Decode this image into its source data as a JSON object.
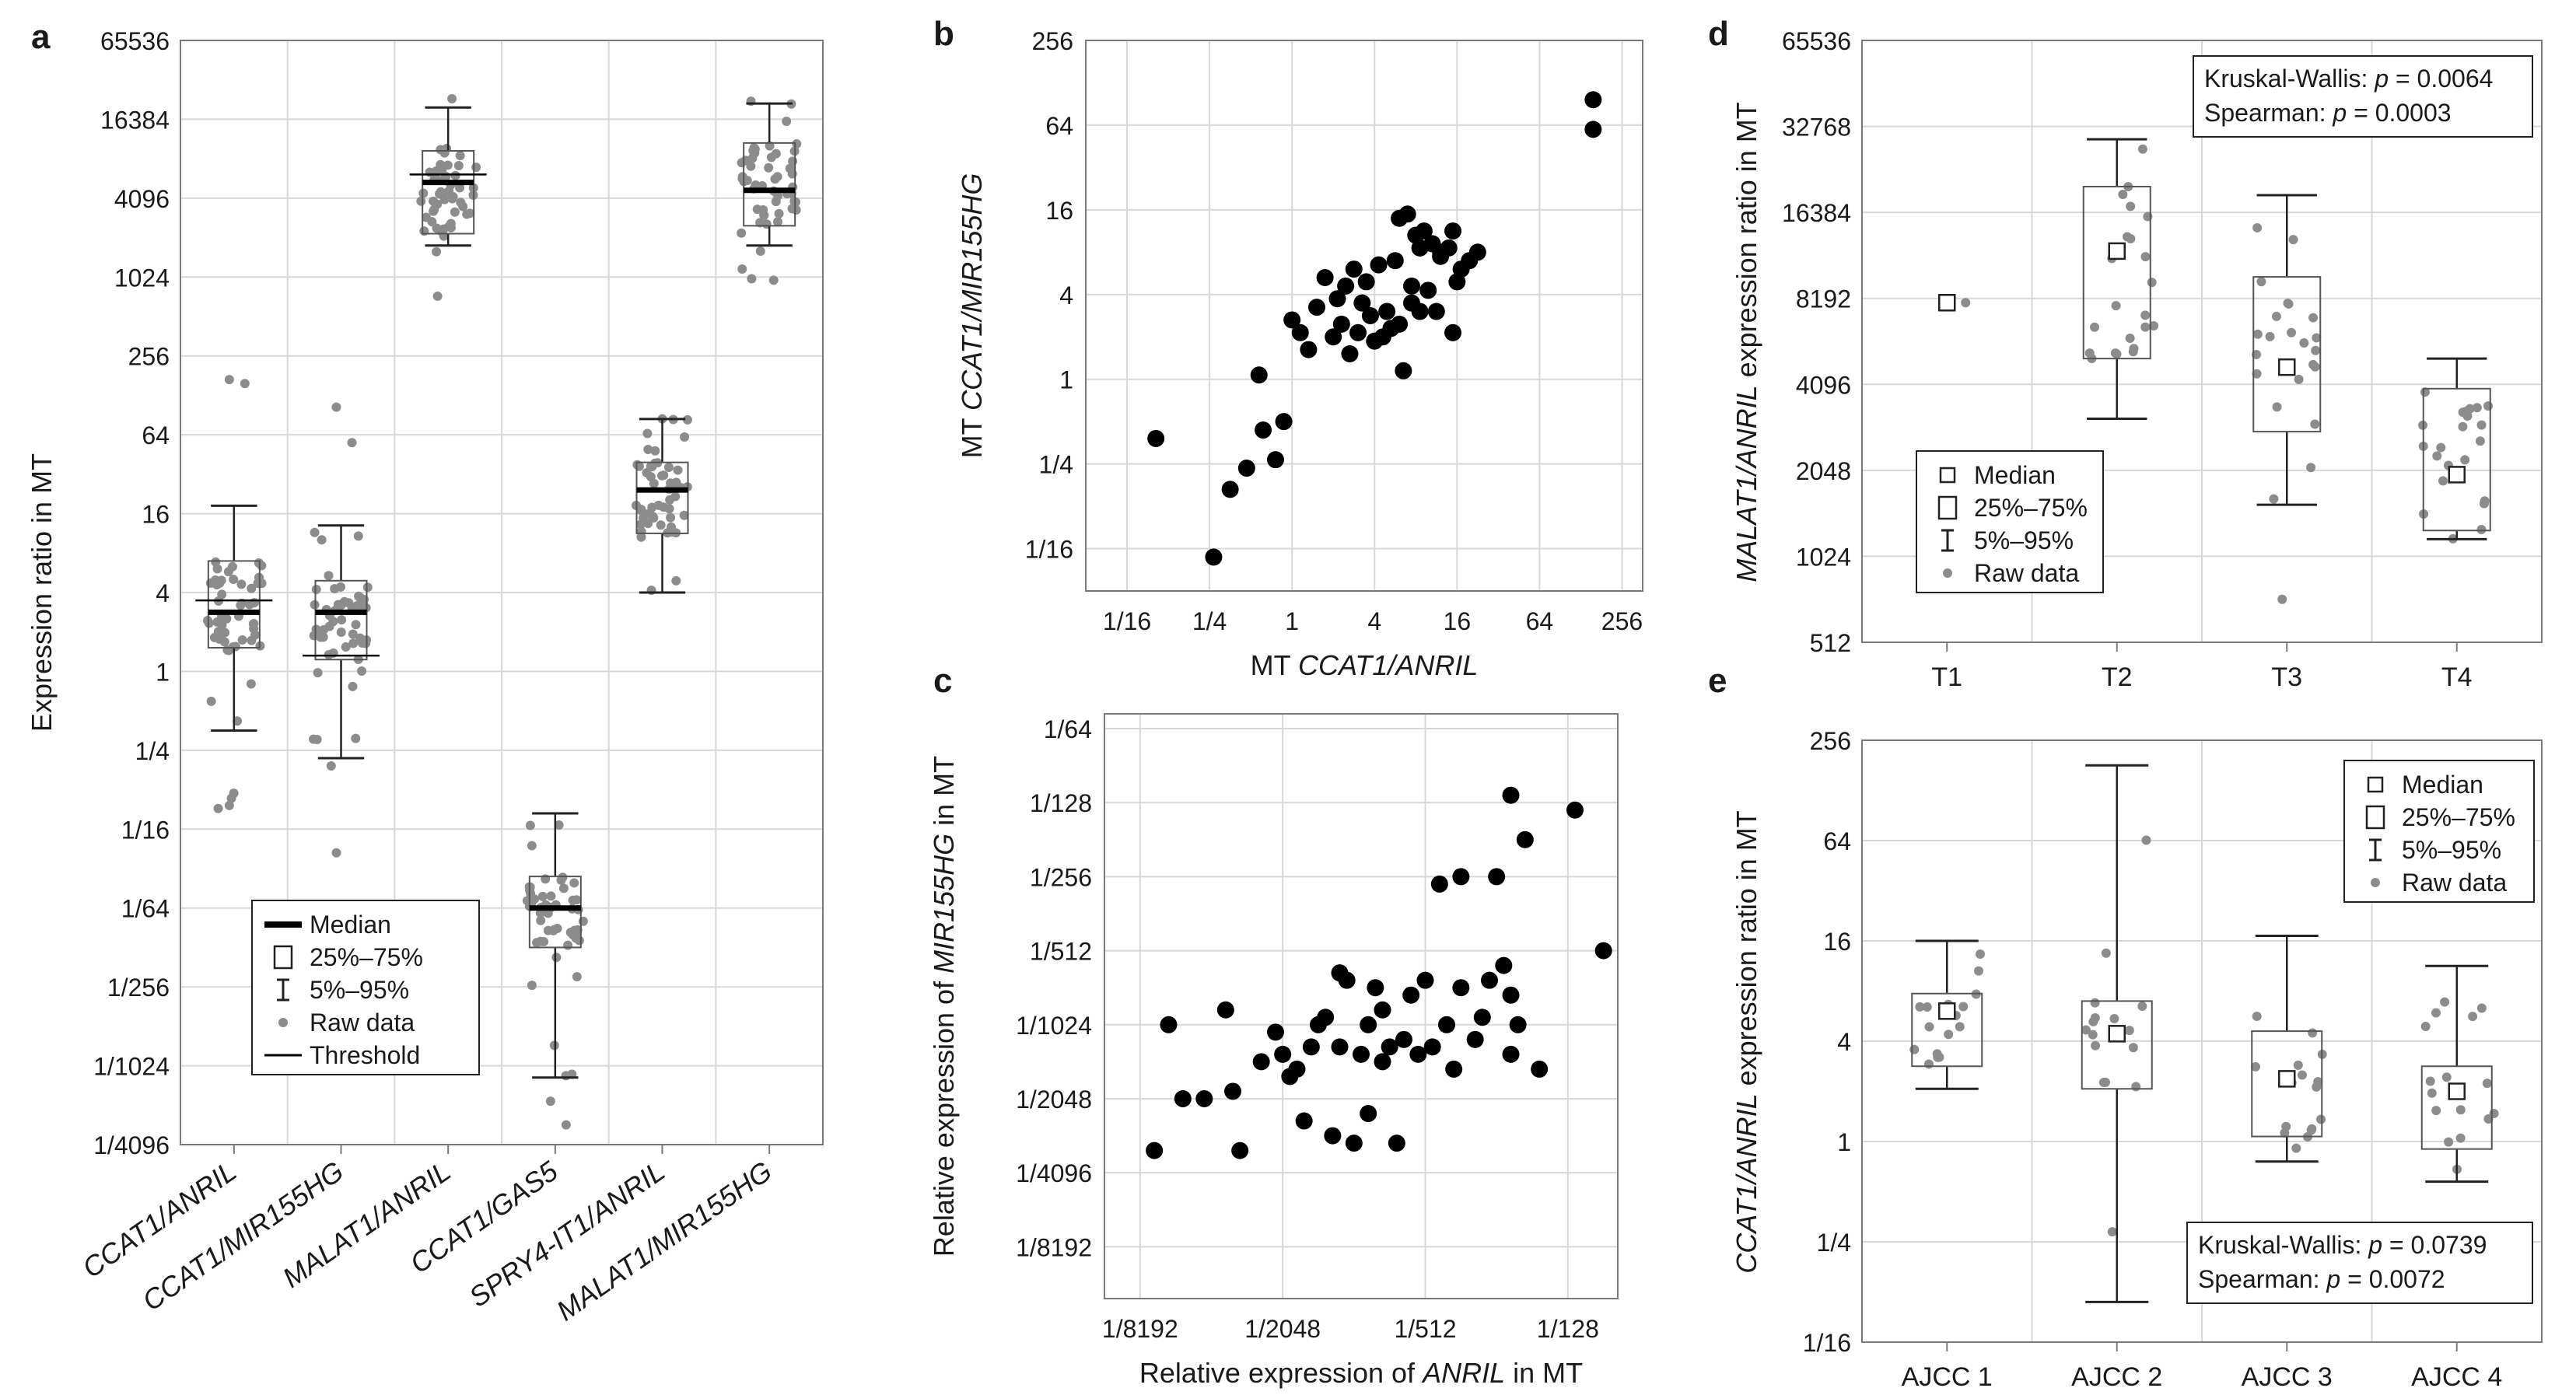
{
  "chart_data": [
    {
      "panel": "a",
      "type": "box",
      "ylabel": "Expression ratio in MT",
      "yscale": "log2",
      "ylim_exp": [
        -12,
        16
      ],
      "tick_exps": [
        -12,
        -10,
        -8,
        -6,
        -4,
        -2,
        0,
        2,
        4,
        6,
        8,
        10,
        12,
        14,
        16
      ],
      "ticks": [
        "1/4096",
        "1/1024",
        "1/256",
        "1/64",
        "1/16",
        "1/4",
        "1",
        "4",
        "16",
        "64",
        "256",
        "1024",
        "4096",
        "16384",
        "65536"
      ],
      "categories": [
        "CCAT1/ANRIL",
        "CCAT1/MIR155HG",
        "MALAT1/ANRIL",
        "CCAT1/GAS5",
        "SPRY4-IT1/ANRIL",
        "MALAT1/MIR155HG"
      ],
      "boxes": [
        {
          "q1": 0.6,
          "median": 1.5,
          "q3": 2.8,
          "w_lo": -1.5,
          "w_hi": 4.2,
          "threshold": 1.8,
          "pts_lo": -3.5,
          "pts_hi": 4.2,
          "outliers": [
            7.4,
            7.3,
            -3.4
          ]
        },
        {
          "q1": 0.3,
          "median": 1.5,
          "q3": 2.3,
          "w_lo": -2.2,
          "w_hi": 3.7,
          "threshold": 0.4,
          "pts_lo": -2.6,
          "pts_hi": 3.6,
          "outliers": [
            6.7,
            5.8,
            -4.6
          ]
        },
        {
          "q1": 11.1,
          "median": 12.4,
          "q3": 13.2,
          "w_lo": 10.8,
          "w_hi": 14.3,
          "threshold": 12.6,
          "pts_lo": 9.4,
          "pts_hi": 14.8,
          "outliers": []
        },
        {
          "q1": -7.0,
          "median": -6.0,
          "q3": -5.2,
          "w_lo": -10.3,
          "w_hi": -3.6,
          "threshold": null,
          "pts_lo": -10.5,
          "pts_hi": -3.3,
          "outliers": [
            -10.9,
            -11.5
          ]
        },
        {
          "q1": 3.5,
          "median": 4.6,
          "q3": 5.3,
          "w_lo": 2.0,
          "w_hi": 6.4,
          "threshold": null,
          "pts_lo": 1.6,
          "pts_hi": 6.5,
          "outliers": []
        },
        {
          "q1": 11.3,
          "median": 12.2,
          "q3": 13.4,
          "w_lo": 10.8,
          "w_hi": 14.4,
          "threshold": null,
          "pts_lo": 9.6,
          "pts_hi": 14.8,
          "outliers": []
        }
      ],
      "legend": [
        {
          "symbol": "median",
          "label": "Median"
        },
        {
          "symbol": "box",
          "label": "25%–75%"
        },
        {
          "symbol": "whisker",
          "label": "5%–95%"
        },
        {
          "symbol": "dot",
          "label": "Raw data"
        },
        {
          "symbol": "line",
          "label": "Threshold"
        }
      ]
    },
    {
      "panel": "b",
      "type": "scatter",
      "xlabel_pre": "MT ",
      "xlabel_it": "CCAT1/ANRIL",
      "ylabel_pre": "MT ",
      "ylabel_it": "CCAT1/MIR155HG",
      "xscale": "log2",
      "yscale": "log2",
      "xlim_exp": [
        -5,
        8.5
      ],
      "ylim_exp": [
        -5,
        8
      ],
      "x_tick_exps": [
        -4,
        -2,
        0,
        2,
        4,
        6,
        8
      ],
      "x_ticks": [
        "1/16",
        "1/4",
        "1",
        "4",
        "16",
        "64",
        "256"
      ],
      "y_tick_exps": [
        -4,
        -2,
        0,
        2,
        4,
        6,
        8
      ],
      "y_ticks": [
        "1/16",
        "1/4",
        "1",
        "4",
        "16",
        "64",
        "256"
      ],
      "points_exp": [
        [
          -3.3,
          -1.4
        ],
        [
          -1.9,
          -4.2
        ],
        [
          -1.5,
          -2.6
        ],
        [
          -1.1,
          -2.1
        ],
        [
          -0.7,
          -1.2
        ],
        [
          -0.4,
          -1.9
        ],
        [
          -0.8,
          0.1
        ],
        [
          -0.2,
          -1.0
        ],
        [
          0.0,
          1.4
        ],
        [
          0.2,
          1.1
        ],
        [
          0.4,
          0.7
        ],
        [
          0.6,
          1.7
        ],
        [
          0.8,
          2.4
        ],
        [
          1.0,
          1.0
        ],
        [
          1.1,
          1.9
        ],
        [
          1.2,
          1.3
        ],
        [
          1.3,
          2.2
        ],
        [
          1.4,
          0.6
        ],
        [
          1.5,
          2.6
        ],
        [
          1.6,
          1.1
        ],
        [
          1.7,
          1.8
        ],
        [
          1.8,
          2.3
        ],
        [
          1.9,
          1.5
        ],
        [
          2.0,
          0.9
        ],
        [
          2.1,
          2.7
        ],
        [
          2.2,
          1.0
        ],
        [
          2.3,
          1.6
        ],
        [
          2.4,
          1.2
        ],
        [
          2.5,
          2.8
        ],
        [
          2.6,
          1.3
        ],
        [
          2.7,
          0.2
        ],
        [
          2.9,
          1.8
        ],
        [
          3.1,
          1.6
        ],
        [
          3.3,
          2.1
        ],
        [
          3.5,
          1.6
        ],
        [
          3.6,
          2.9
        ],
        [
          2.6,
          3.8
        ],
        [
          2.8,
          3.9
        ],
        [
          2.9,
          2.2
        ],
        [
          3.0,
          3.4
        ],
        [
          3.1,
          3.1
        ],
        [
          3.2,
          3.5
        ],
        [
          3.4,
          3.2
        ],
        [
          3.6,
          3.0
        ],
        [
          3.8,
          3.1
        ],
        [
          3.9,
          1.1
        ],
        [
          4.0,
          2.3
        ],
        [
          4.1,
          2.6
        ],
        [
          4.3,
          2.8
        ],
        [
          4.5,
          3.0
        ],
        [
          3.9,
          3.5
        ],
        [
          7.3,
          6.6
        ],
        [
          7.3,
          5.9
        ]
      ]
    },
    {
      "panel": "c",
      "type": "scatter",
      "xlabel_pre": "Relative  expression of ",
      "xlabel_it": "ANRIL",
      "xlabel_post": " in MT",
      "ylabel_pre": "Relative expression of ",
      "ylabel_it": "MIR155HG",
      "ylabel_post": " in MT",
      "xscale": "log2",
      "yscale": "log2",
      "xlim_exp": [
        -13.5,
        -6.3
      ],
      "ylim_exp": [
        -13.7,
        -5.8
      ],
      "x_tick_exps": [
        -13,
        -11,
        -9,
        -7
      ],
      "x_ticks": [
        "1/8192",
        "1/2048",
        "1/512",
        "1/128"
      ],
      "y_tick_exps": [
        -13,
        -12,
        -11,
        -10,
        -9,
        -8,
        -7,
        -6
      ],
      "y_ticks": [
        "1/8192",
        "1/4096",
        "1/2048",
        "1/1024",
        "1/512",
        "1/256",
        "1/128",
        "1/64"
      ],
      "points_exp": [
        [
          -12.8,
          -11.7
        ],
        [
          -12.6,
          -10.0
        ],
        [
          -12.4,
          -11.0
        ],
        [
          -12.1,
          -11.0
        ],
        [
          -11.8,
          -9.8
        ],
        [
          -11.7,
          -10.9
        ],
        [
          -11.6,
          -11.7
        ],
        [
          -11.3,
          -10.5
        ],
        [
          -11.1,
          -10.1
        ],
        [
          -11.0,
          -10.4
        ],
        [
          -10.9,
          -10.7
        ],
        [
          -10.8,
          -10.6
        ],
        [
          -10.7,
          -11.3
        ],
        [
          -10.6,
          -10.3
        ],
        [
          -10.5,
          -10.0
        ],
        [
          -10.4,
          -9.9
        ],
        [
          -10.3,
          -11.5
        ],
        [
          -10.2,
          -10.3
        ],
        [
          -10.2,
          -9.3
        ],
        [
          -10.1,
          -9.4
        ],
        [
          -10.0,
          -11.6
        ],
        [
          -9.9,
          -10.4
        ],
        [
          -9.8,
          -10.0
        ],
        [
          -9.8,
          -11.2
        ],
        [
          -9.7,
          -9.5
        ],
        [
          -9.6,
          -10.5
        ],
        [
          -9.6,
          -9.8
        ],
        [
          -9.5,
          -10.3
        ],
        [
          -9.4,
          -11.6
        ],
        [
          -9.3,
          -10.2
        ],
        [
          -9.2,
          -9.6
        ],
        [
          -9.1,
          -10.4
        ],
        [
          -9.0,
          -9.4
        ],
        [
          -8.9,
          -10.3
        ],
        [
          -8.8,
          -8.1
        ],
        [
          -8.7,
          -10.0
        ],
        [
          -8.6,
          -10.6
        ],
        [
          -8.5,
          -9.5
        ],
        [
          -8.5,
          -8.0
        ],
        [
          -8.3,
          -10.2
        ],
        [
          -8.2,
          -9.9
        ],
        [
          -8.1,
          -9.4
        ],
        [
          -8.0,
          -8.0
        ],
        [
          -7.9,
          -9.2
        ],
        [
          -7.8,
          -9.6
        ],
        [
          -7.8,
          -10.4
        ],
        [
          -7.7,
          -10.0
        ],
        [
          -7.6,
          -7.5
        ],
        [
          -6.9,
          -7.1
        ],
        [
          -6.5,
          -9.0
        ],
        [
          -7.8,
          -6.9
        ],
        [
          -7.4,
          -10.6
        ]
      ]
    },
    {
      "panel": "d",
      "type": "box",
      "ylabel_it": "MALAT1/ANRIL",
      "ylabel_post": " expression ratio in MT",
      "yscale": "log2",
      "ylim_exp": [
        9,
        16
      ],
      "tick_exps": [
        9,
        10,
        11,
        12,
        13,
        14,
        15,
        16
      ],
      "ticks": [
        "512",
        "1024",
        "2048",
        "4096",
        "8192",
        "16384",
        "32768",
        "65536"
      ],
      "categories": [
        "T1",
        "T2",
        "T3",
        "T4"
      ],
      "boxes": [
        {
          "single": 12.95
        },
        {
          "q1": 12.3,
          "median": 13.55,
          "q3": 14.3,
          "w_lo": 11.6,
          "w_hi": 14.85,
          "pts_lo": 11.6,
          "pts_hi": 14.85
        },
        {
          "q1": 11.45,
          "median": 12.2,
          "q3": 13.25,
          "w_lo": 10.6,
          "w_hi": 14.2,
          "pts_lo": 10.6,
          "pts_hi": 14.2,
          "outliers": [
            9.5
          ]
        },
        {
          "q1": 10.3,
          "median": 10.95,
          "q3": 11.95,
          "w_lo": 10.2,
          "w_hi": 12.3,
          "pts_lo": 10.2,
          "pts_hi": 12.3
        }
      ],
      "legend": [
        {
          "symbol": "median",
          "label": "Median"
        },
        {
          "symbol": "box",
          "label": "25%–75%"
        },
        {
          "symbol": "whisker",
          "label": "5%–95%"
        },
        {
          "symbol": "dot",
          "label": "Raw data"
        }
      ],
      "stats": [
        {
          "pre": "Kruskal-Wallis: ",
          "p": "p",
          "post": " = 0.0064"
        },
        {
          "pre": "Spearman: ",
          "p": "p",
          "post": " = 0.0003"
        }
      ]
    },
    {
      "panel": "e",
      "type": "box",
      "ylabel_it": "CCAT1/ANRIL",
      "ylabel_post": " expression ratio in MT",
      "yscale": "log2",
      "ylim_exp": [
        -4,
        8
      ],
      "tick_exps": [
        -4,
        -2,
        0,
        2,
        4,
        6,
        8
      ],
      "ticks": [
        "1/16",
        "1/4",
        "1",
        "4",
        "16",
        "64",
        "256"
      ],
      "categories": [
        "AJCC 1",
        "AJCC 2",
        "AJCC 3",
        "AJCC 4"
      ],
      "boxes": [
        {
          "q1": 1.5,
          "median": 2.6,
          "q3": 2.95,
          "w_lo": 1.05,
          "w_hi": 4.0,
          "pts_lo": 1.05,
          "pts_hi": 4.0
        },
        {
          "q1": 1.05,
          "median": 2.15,
          "q3": 2.8,
          "w_lo": -3.2,
          "w_hi": 7.5,
          "pts_lo": -3.2,
          "pts_hi": 7.5,
          "outliers": [
            -1.8
          ]
        },
        {
          "q1": 0.1,
          "median": 1.25,
          "q3": 2.2,
          "w_lo": -0.4,
          "w_hi": 4.1,
          "pts_lo": -0.4,
          "pts_hi": 4.1
        },
        {
          "q1": -0.15,
          "median": 1.0,
          "q3": 1.5,
          "w_lo": -0.8,
          "w_hi": 3.5,
          "pts_lo": -0.8,
          "pts_hi": 3.5
        }
      ],
      "legend": [
        {
          "symbol": "median",
          "label": "Median"
        },
        {
          "symbol": "box",
          "label": "25%–75%"
        },
        {
          "symbol": "whisker",
          "label": "5%–95%"
        },
        {
          "symbol": "dot",
          "label": "Raw data"
        }
      ],
      "stats": [
        {
          "pre": "Kruskal-Wallis: ",
          "p": "p",
          "post": " = 0.0739"
        },
        {
          "pre": "Spearman: ",
          "p": "p",
          "post": " = 0.0072"
        }
      ]
    }
  ]
}
